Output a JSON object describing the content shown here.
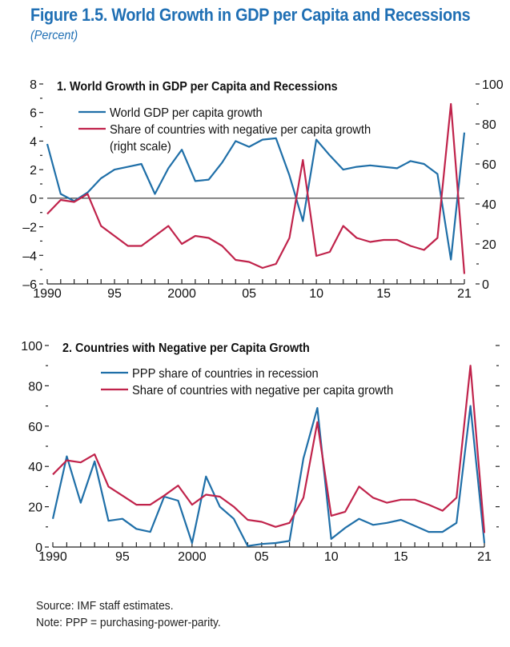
{
  "figure": {
    "title": "Figure 1.5. World Growth in GDP per Capita and Recessions",
    "subtitle": "(Percent)",
    "source": "Source: IMF staff estimates.",
    "note": "Note: PPP = purchasing-power-parity."
  },
  "colors": {
    "title": "#1f6fb4",
    "blue": "#1f6fa8",
    "red": "#c0234b"
  },
  "chart_data": [
    {
      "type": "line",
      "title": "1. World Growth in GDP per Capita and Recessions",
      "x": [
        1990,
        1991,
        1992,
        1993,
        1994,
        1995,
        1996,
        1997,
        1998,
        1999,
        2000,
        2001,
        2002,
        2003,
        2004,
        2005,
        2006,
        2007,
        2008,
        2009,
        2010,
        2011,
        2012,
        2013,
        2014,
        2015,
        2016,
        2017,
        2018,
        2019,
        2020,
        2021
      ],
      "x_tick_labels": [
        {
          "year": 1990,
          "label": "1990"
        },
        {
          "year": 1995,
          "label": "95"
        },
        {
          "year": 2000,
          "label": "2000"
        },
        {
          "year": 2005,
          "label": "05"
        },
        {
          "year": 2010,
          "label": "10"
        },
        {
          "year": 2015,
          "label": "15"
        },
        {
          "year": 2021,
          "label": "21"
        }
      ],
      "ylim_left": [
        -6,
        8
      ],
      "yticks_left": [
        {
          "v": 8,
          "label": "8"
        },
        {
          "v": 6,
          "label": "6"
        },
        {
          "v": 4,
          "label": "4"
        },
        {
          "v": 2,
          "label": "2"
        },
        {
          "v": 0,
          "label": "0"
        },
        {
          "v": -2,
          "label": "–2"
        },
        {
          "v": -4,
          "label": "–4"
        },
        {
          "v": -6,
          "label": "–6"
        }
      ],
      "ylim_right": [
        0,
        100
      ],
      "yticks_right": [
        {
          "v": 100,
          "label": "100"
        },
        {
          "v": 80,
          "label": "80"
        },
        {
          "v": 60,
          "label": "60"
        },
        {
          "v": 40,
          "label": "40"
        },
        {
          "v": 20,
          "label": "20"
        },
        {
          "v": 0,
          "label": "0"
        }
      ],
      "zero_line": true,
      "legend_position": "top-left",
      "series": [
        {
          "name": "World GDP per capita growth",
          "axis": "left",
          "color": "blue",
          "values": [
            3.8,
            0.3,
            -0.2,
            0.4,
            1.4,
            2.0,
            2.2,
            2.4,
            0.3,
            2.1,
            3.4,
            1.2,
            1.3,
            2.5,
            4.0,
            3.6,
            4.1,
            4.2,
            1.6,
            -1.6,
            4.1,
            3.0,
            2.0,
            2.2,
            2.3,
            2.2,
            2.1,
            2.6,
            2.4,
            1.7,
            -4.3,
            4.6
          ]
        },
        {
          "name": "Share of countries with negative per capita growth",
          "name_line2": "(right scale)",
          "axis": "right",
          "color": "red",
          "values": [
            35,
            42,
            41,
            45,
            29,
            24,
            19,
            19,
            24,
            29,
            20,
            24,
            23,
            19,
            12,
            11,
            8,
            10,
            23,
            62,
            14,
            16,
            29,
            23,
            21,
            22,
            22,
            19,
            17,
            23,
            90,
            5
          ]
        }
      ]
    },
    {
      "type": "line",
      "title": "2. Countries with Negative per Capita Growth",
      "x": [
        1990,
        1991,
        1992,
        1993,
        1994,
        1995,
        1996,
        1997,
        1998,
        1999,
        2000,
        2001,
        2002,
        2003,
        2004,
        2005,
        2006,
        2007,
        2008,
        2009,
        2010,
        2011,
        2012,
        2013,
        2014,
        2015,
        2016,
        2017,
        2018,
        2019,
        2020,
        2021
      ],
      "x_tick_labels": [
        {
          "year": 1990,
          "label": "1990"
        },
        {
          "year": 1995,
          "label": "95"
        },
        {
          "year": 2000,
          "label": "2000"
        },
        {
          "year": 2005,
          "label": "05"
        },
        {
          "year": 2010,
          "label": "10"
        },
        {
          "year": 2015,
          "label": "15"
        },
        {
          "year": 2021,
          "label": "21"
        }
      ],
      "ylim": [
        0,
        100
      ],
      "yticks": [
        {
          "v": 100,
          "label": "100"
        },
        {
          "v": 80,
          "label": "80"
        },
        {
          "v": 60,
          "label": "60"
        },
        {
          "v": 40,
          "label": "40"
        },
        {
          "v": 20,
          "label": "20"
        },
        {
          "v": 0,
          "label": "0"
        }
      ],
      "legend_position": "top-left",
      "series": [
        {
          "name": "PPP share of countries in recession",
          "color": "blue",
          "values": [
            14,
            45,
            22,
            42.5,
            13,
            14,
            9,
            7.5,
            25,
            23,
            2,
            35,
            20,
            14,
            0.5,
            1.5,
            2,
            3,
            44,
            69,
            4,
            9.5,
            14,
            11,
            12,
            13.5,
            10.5,
            7.5,
            7.5,
            12,
            70,
            2
          ]
        },
        {
          "name": "Share of countries with negative per capita growth",
          "color": "red",
          "values": [
            36,
            43,
            42,
            46,
            30,
            25.5,
            21,
            21,
            25.5,
            30.5,
            21,
            26,
            25,
            20,
            13.5,
            12.5,
            10,
            12,
            24.5,
            62,
            15.5,
            17.5,
            30,
            24.5,
            22,
            23.5,
            23.5,
            21,
            18,
            24.5,
            90,
            7
          ]
        }
      ]
    }
  ]
}
